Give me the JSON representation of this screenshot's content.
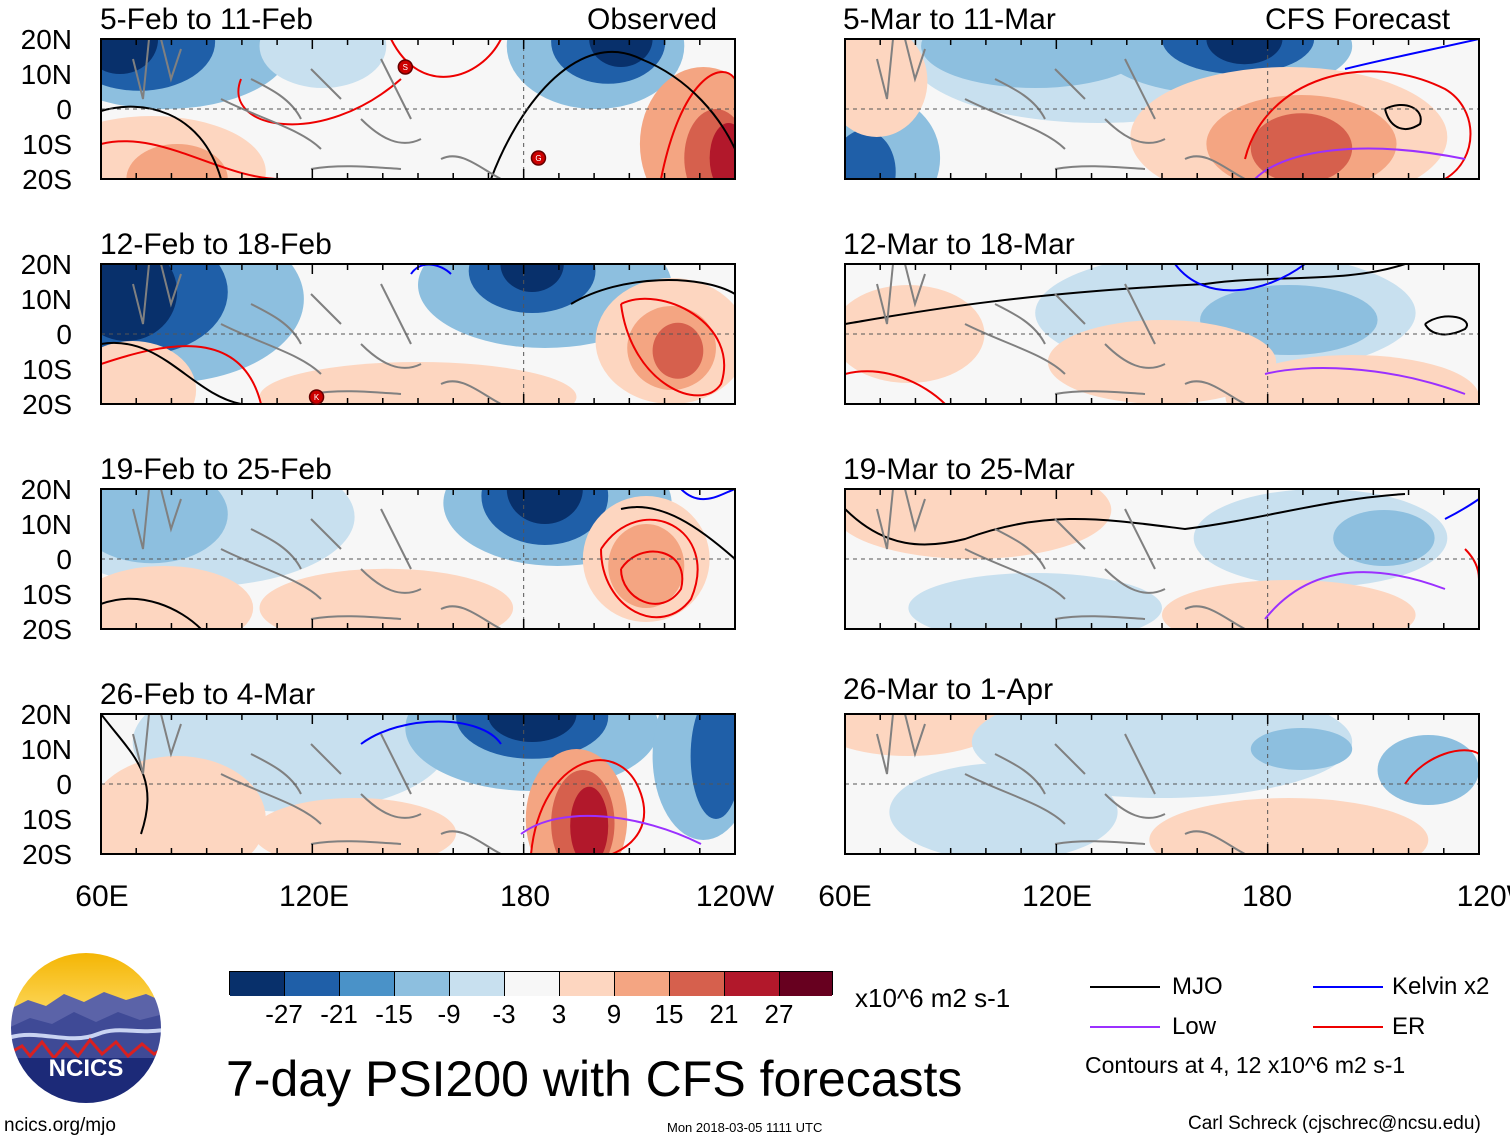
{
  "colors": {
    "neg": [
      "#08306b",
      "#1f5fa8",
      "#4a92c8",
      "#8dbfdf",
      "#c8e0ef"
    ],
    "neutral": "#f7f7f7",
    "pos": [
      "#fdd6c0",
      "#f4a582",
      "#d6604d",
      "#b2182b",
      "#67001f"
    ],
    "mjo": "#000000",
    "kelvin": "#0000ff",
    "low": "#9b30ff",
    "er": "#ee0000",
    "coast": "#808080"
  },
  "headers": {
    "observed": "Observed",
    "forecast": "CFS Forecast"
  },
  "panels": [
    {
      "title": "5-Feb to 11-Feb"
    },
    {
      "title": "12-Feb to 18-Feb"
    },
    {
      "title": "19-Feb to 25-Feb"
    },
    {
      "title": "26-Feb to 4-Mar"
    },
    {
      "title": "5-Mar to 11-Mar"
    },
    {
      "title": "12-Mar to 18-Mar"
    },
    {
      "title": "19-Mar to 25-Mar"
    },
    {
      "title": "26-Mar to 1-Apr"
    }
  ],
  "lat_labels": [
    "20N",
    "10N",
    "0",
    "10S",
    "20S"
  ],
  "lon_labels": [
    "60E",
    "120E",
    "180",
    "120W"
  ],
  "storm_markers": [
    "S",
    "G",
    "K"
  ],
  "colorbar": {
    "labels": [
      "-27",
      "-21",
      "-15",
      "-9",
      "-3",
      "3",
      "9",
      "15",
      "21",
      "27"
    ],
    "units": "x10^6 m2 s-1"
  },
  "legend": {
    "mjo": "MJO",
    "kelvin": "Kelvin x2",
    "low": "Low",
    "er": "ER",
    "note": "Contours at 4, 12 x10^6 m2 s-1"
  },
  "main_title": "7-day PSI200 with CFS forecasts",
  "logo_text": "NCICS",
  "footer": {
    "left": "ncics.org/mjo",
    "center": "Mon 2018-03-05 1111 UTC",
    "right": "Carl Schreck (cjschrec@ncsu.edu)"
  }
}
